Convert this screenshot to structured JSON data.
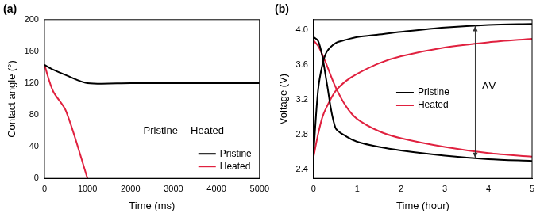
{
  "chart_data": [
    {
      "type": "line",
      "title": "(a)",
      "x_label": "Time (ms)",
      "y_label": "Contact angle (°)",
      "x": [
        0,
        200,
        500,
        1000,
        2000,
        3000,
        4000,
        5000
      ],
      "series": [
        {
          "name": "Pristine",
          "color": "#000000",
          "values": [
            143,
            137,
            130,
            120,
            120,
            120,
            120,
            120
          ]
        },
        {
          "name": "Heated",
          "color": "#e0213f",
          "values": [
            143,
            110,
            85,
            0,
            null,
            null,
            null,
            null
          ]
        }
      ],
      "xlim": [
        0,
        5000
      ],
      "xticks": [
        0,
        1000,
        2000,
        3000,
        4000,
        5000
      ],
      "ylim": [
        0,
        200
      ],
      "yticks": [
        0,
        40,
        80,
        120,
        160,
        200
      ],
      "grid": false,
      "legend": "lower right",
      "annotations": [
        {
          "text": "Pristine",
          "x": 2300,
          "y": 60
        },
        {
          "text": "Heated",
          "x": 3400,
          "y": 60
        }
      ]
    },
    {
      "type": "line",
      "title": "(b)",
      "x_label": "Time (hour)",
      "y_label": "Voltage (V)",
      "x": [
        0,
        0.1,
        0.2,
        0.3,
        0.5,
        0.75,
        1,
        1.5,
        2,
        3,
        4,
        5
      ],
      "series": [
        {
          "name": "Pristine",
          "color": "#000000",
          "values": [
            2.6,
            3.3,
            3.6,
            3.75,
            3.85,
            3.89,
            3.92,
            3.95,
            3.98,
            4.03,
            4.06,
            4.07
          ]
        },
        {
          "name": "Pristine",
          "color": "#000000",
          "values": [
            3.92,
            3.88,
            3.7,
            3.4,
            2.88,
            2.78,
            2.72,
            2.66,
            2.62,
            2.56,
            2.52,
            2.5
          ]
        },
        {
          "name": "Heated",
          "color": "#e0213f",
          "values": [
            2.55,
            2.8,
            3.0,
            3.12,
            3.3,
            3.42,
            3.5,
            3.62,
            3.7,
            3.8,
            3.86,
            3.9
          ]
        },
        {
          "name": "Heated",
          "color": "#e0213f",
          "values": [
            3.88,
            3.82,
            3.72,
            3.6,
            3.35,
            3.12,
            2.98,
            2.84,
            2.76,
            2.66,
            2.59,
            2.55
          ]
        }
      ],
      "xlim": [
        0,
        5
      ],
      "xticks": [
        0,
        1,
        2,
        3,
        4,
        5
      ],
      "ylim": [
        2.3,
        4.12
      ],
      "yticks": [
        2.4,
        2.8,
        3.2,
        3.6,
        {
          "value": 4,
          "label": "4.0"
        }
      ],
      "grid": false,
      "legend": "center",
      "annotations": [
        {
          "text": "ΔV",
          "x": 3.85,
          "y": 3.35,
          "arrow": {
            "x": 3.7,
            "y": [
              2.53,
              4.05
            ]
          }
        }
      ]
    }
  ]
}
